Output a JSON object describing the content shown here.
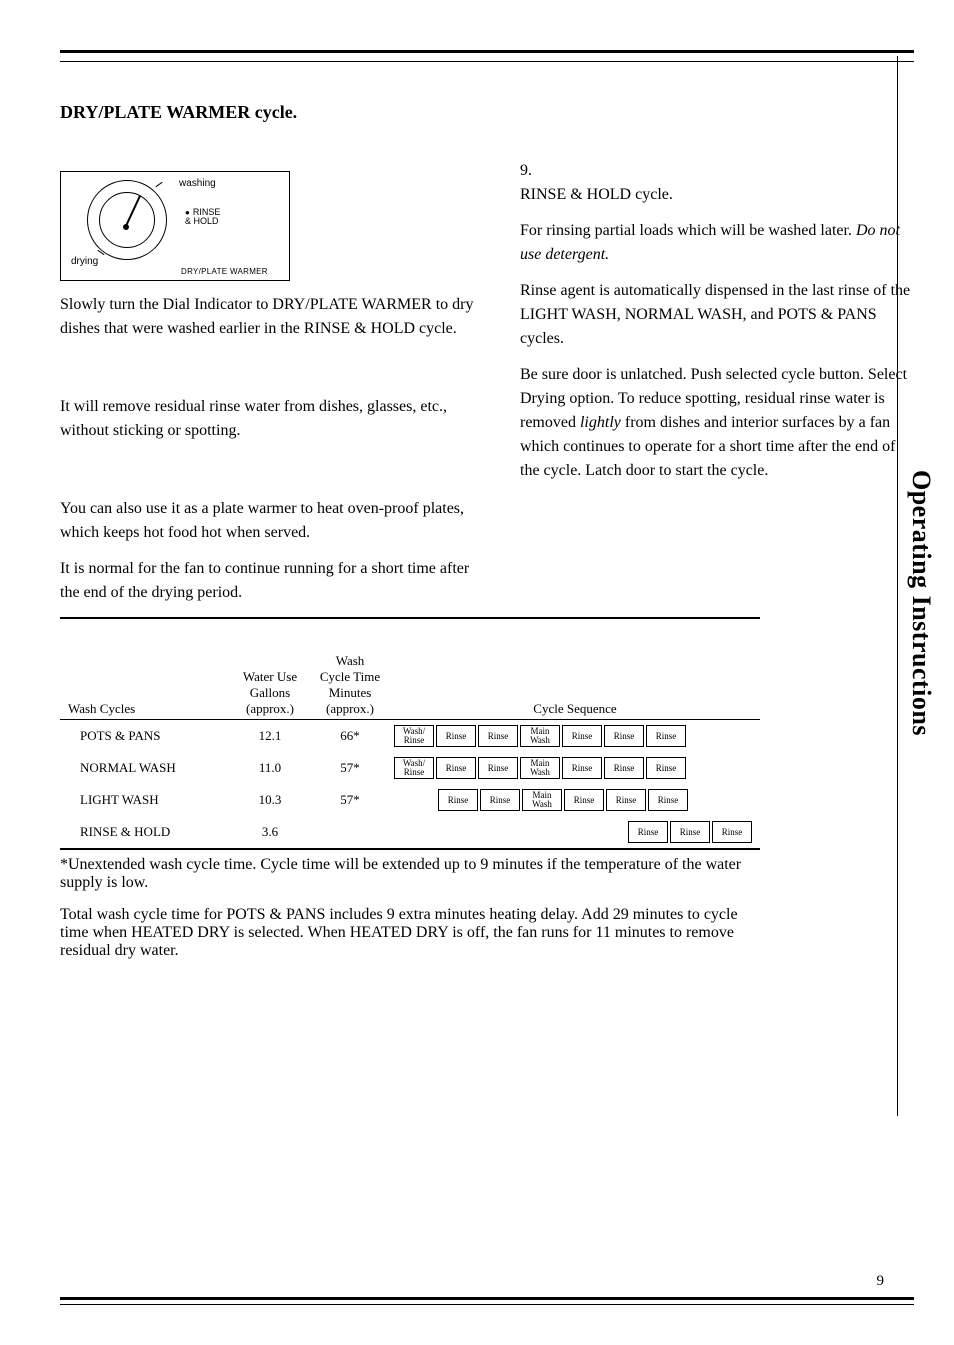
{
  "section": {
    "title": "DRY/PLATE WARMER cycle."
  },
  "dial": {
    "washing": "washing",
    "rinse": "RINSE\n& HOLD",
    "drying": "drying",
    "plate": "DRY/PLATE WARMER"
  },
  "left": {
    "p1_a": "Slowly turn the Dial Indicator to DRY/PLATE WARMER to dry dishes that were washed earlier in the RINSE & HOLD cycle.",
    "p2_a": "It will remove residual rinse water from dishes, glasses, etc., without sticking or spotting.",
    "p3_a": "You can also use it as a plate warmer to heat oven-proof plates, which keeps hot food hot when served.",
    "p4_a": "It is normal for the fan to continue running for a short time after the end of the drying period."
  },
  "right": {
    "step_no": "9.",
    "p1": "RINSE & HOLD cycle.",
    "p2_pre": "For rinsing partial loads which will be washed later. ",
    "p2_em": "Do not use detergent.",
    "p3": "Rinse agent is automatically dispensed in the last rinse of the LIGHT WASH, NORMAL WASH, and POTS & PANS cycles.",
    "p4_pre": "Be sure door is unlatched. Push selected cycle button. Select Drying option. To reduce spotting, residual rinse water is removed from dishes and interior surfaces by a fan which continues to operate for a short time after the end of the cycle. Latch door to start the cycle."
  },
  "table": {
    "headers": {
      "cycles": "Wash Cycles",
      "water": "Water Use\nGallons\n(approx.)",
      "time": "Wash\nCycle Time\nMinutes\n(approx.)",
      "seq": "Cycle Sequence"
    },
    "rows": [
      {
        "name": "POTS & PANS",
        "gallons": "12.1",
        "minutes": "66*",
        "seq": [
          "Wash/\nRinse",
          "Rinse",
          "Rinse",
          "Main\nWash",
          "Rinse",
          "Rinse",
          "Rinse"
        ],
        "align": "full"
      },
      {
        "name": "NORMAL WASH",
        "gallons": "11.0",
        "minutes": "57*",
        "seq": [
          "Wash/\nRinse",
          "Rinse",
          "Rinse",
          "Main\nWash",
          "Rinse",
          "Rinse",
          "Rinse"
        ],
        "align": "full"
      },
      {
        "name": "LIGHT WASH",
        "gallons": "10.3",
        "minutes": "57*",
        "seq": [
          "Rinse",
          "Rinse",
          "Main\nWash",
          "Rinse",
          "Rinse",
          "Rinse"
        ],
        "align": "shift1"
      },
      {
        "name": "RINSE & HOLD",
        "gallons": "3.6",
        "minutes": "",
        "seq": [
          "Rinse",
          "Rinse",
          "Rinse"
        ],
        "align": "right"
      }
    ],
    "footnote1": "*Unextended wash cycle time. Cycle time will be extended up to 9 minutes if the temperature of the water supply is low.",
    "footnote2": "Total wash cycle time for POTS & PANS includes 9 extra minutes heating delay. Add 29 minutes to cycle time when HEATED DRY is selected. When HEATED DRY is off, the fan runs for 11 minutes to remove residual dry water."
  },
  "sidebar": "Operating Instructions",
  "page_number": "9",
  "colors": {
    "text": "#000000",
    "bg": "#ffffff"
  }
}
